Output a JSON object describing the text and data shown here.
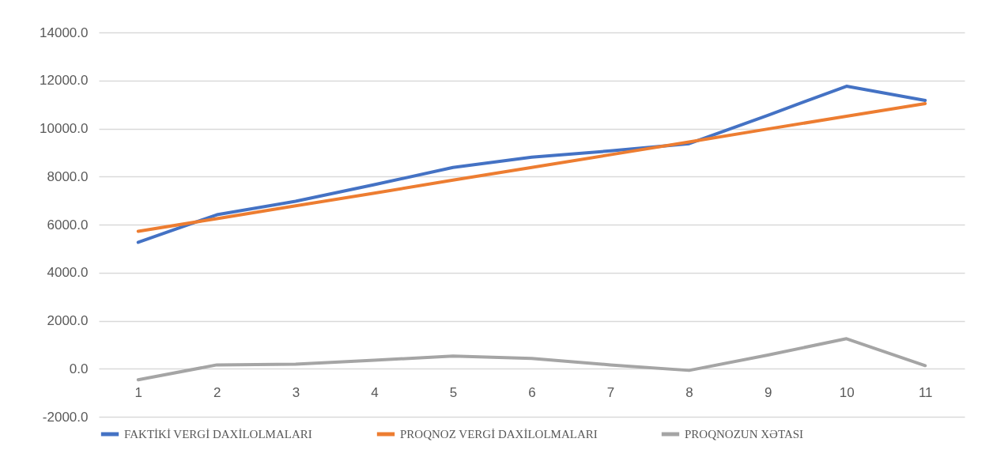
{
  "chart_data": {
    "type": "line",
    "categories": [
      "1",
      "2",
      "3",
      "4",
      "5",
      "6",
      "7",
      "8",
      "9",
      "10",
      "11"
    ],
    "series": [
      {
        "name": "FAKTİKİ VERGİ DAXİLOLMALARI",
        "color": "#4472c4",
        "values": [
          5260,
          6410,
          6970,
          7660,
          8380,
          8810,
          9070,
          9370,
          10550,
          11760,
          11170
        ]
      },
      {
        "name": "PROQNOZ VERGİ DAXİLOLMALARI",
        "color": "#ed7d31",
        "values": [
          5720,
          6250,
          6780,
          7310,
          7850,
          8380,
          8910,
          9440,
          9980,
          10510,
          11040
        ]
      },
      {
        "name": "PROQNOZUN XƏTASI",
        "color": "#a5a5a5",
        "values": [
          -460,
          160,
          190,
          350,
          530,
          430,
          160,
          -70,
          570,
          1250,
          130
        ]
      }
    ],
    "ylim": [
      -2000,
      14000
    ],
    "yticks": [
      {
        "value": -2000,
        "label": "-2000.0"
      },
      {
        "value": 0,
        "label": "0.0"
      },
      {
        "value": 2000,
        "label": "2000.0"
      },
      {
        "value": 4000,
        "label": "4000.0"
      },
      {
        "value": 6000,
        "label": "6000.0"
      },
      {
        "value": 8000,
        "label": "8000.0"
      },
      {
        "value": 10000,
        "label": "10000.0"
      },
      {
        "value": 12000,
        "label": "12000.0"
      },
      {
        "value": 14000,
        "label": "14000.0"
      }
    ],
    "grid": "y",
    "legend": "bottom",
    "marker": "none",
    "line_style": "solid"
  }
}
